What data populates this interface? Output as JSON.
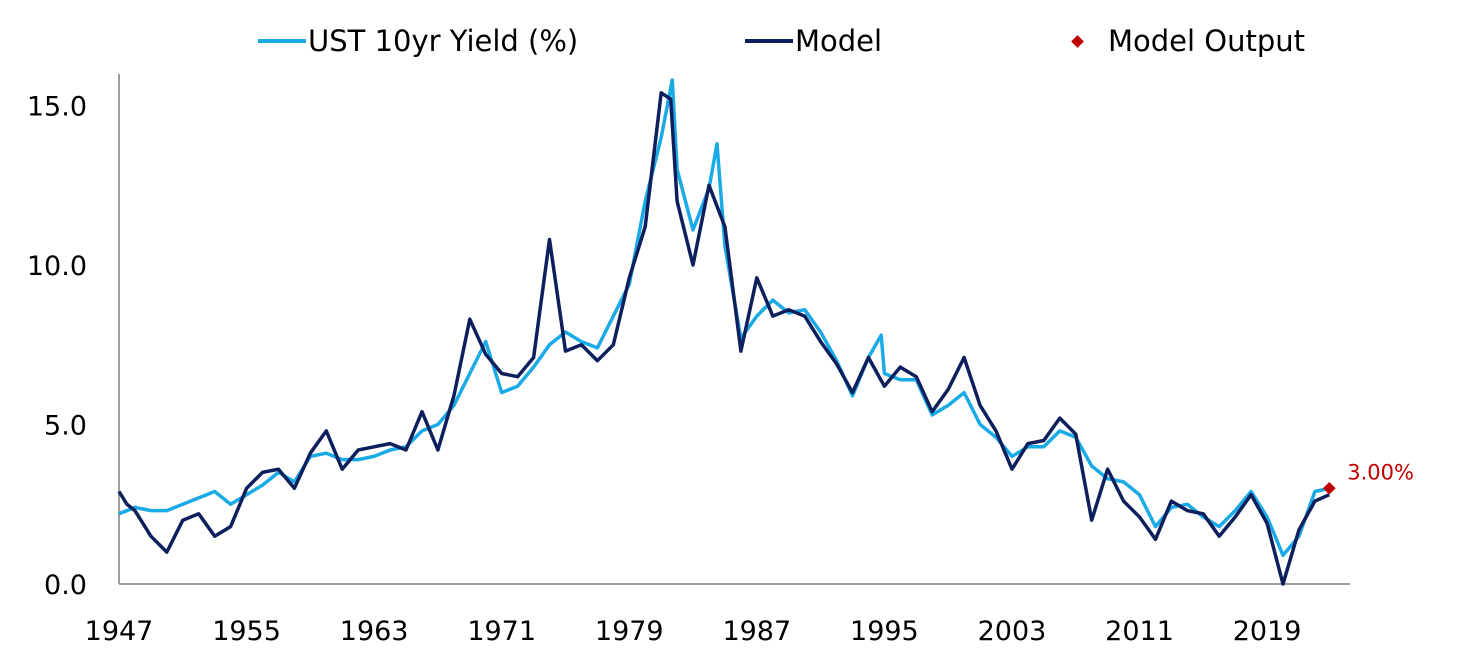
{
  "chart_data": {
    "type": "line",
    "title": "",
    "xlabel": "",
    "ylabel": "",
    "xlim": [
      1947,
      2024.2
    ],
    "ylim": [
      0,
      15.8
    ],
    "x_ticks": [
      "1947",
      "1955",
      "1963",
      "1971",
      "1979",
      "1987",
      "1995",
      "2003",
      "2011",
      "2019"
    ],
    "y_ticks": [
      "15.0",
      "10.0",
      "5.0",
      "0.0"
    ],
    "grid": false,
    "legend_position": "top",
    "legend": [
      {
        "label": "UST 10yr Yield (%)",
        "marker": "line"
      },
      {
        "label": "Model",
        "marker": "line"
      },
      {
        "label": "Model Output",
        "marker": "diamond"
      }
    ],
    "colors": {
      "ust": "#1AAAE6",
      "model": "#0D1F5C",
      "output": "#C00000"
    },
    "series": [
      {
        "name": "UST 10yr Yield (%)",
        "points": [
          [
            1947.0,
            2.2
          ],
          [
            1948.0,
            2.4
          ],
          [
            1949.0,
            2.3
          ],
          [
            1950.0,
            2.3
          ],
          [
            1951.0,
            2.5
          ],
          [
            1952.0,
            2.7
          ],
          [
            1953.0,
            2.9
          ],
          [
            1954.0,
            2.5
          ],
          [
            1955.0,
            2.8
          ],
          [
            1956.0,
            3.1
          ],
          [
            1957.0,
            3.5
          ],
          [
            1958.0,
            3.2
          ],
          [
            1959.0,
            4.0
          ],
          [
            1960.0,
            4.1
          ],
          [
            1961.0,
            3.9
          ],
          [
            1962.0,
            3.9
          ],
          [
            1963.0,
            4.0
          ],
          [
            1964.0,
            4.2
          ],
          [
            1965.0,
            4.3
          ],
          [
            1966.0,
            4.8
          ],
          [
            1967.0,
            5.0
          ],
          [
            1968.0,
            5.6
          ],
          [
            1969.0,
            6.6
          ],
          [
            1970.0,
            7.6
          ],
          [
            1971.0,
            6.0
          ],
          [
            1972.0,
            6.2
          ],
          [
            1973.0,
            6.8
          ],
          [
            1974.0,
            7.5
          ],
          [
            1975.0,
            7.9
          ],
          [
            1976.0,
            7.6
          ],
          [
            1977.0,
            7.4
          ],
          [
            1978.0,
            8.4
          ],
          [
            1979.0,
            9.4
          ],
          [
            1980.0,
            12.0
          ],
          [
            1981.0,
            14.0
          ],
          [
            1981.7,
            15.8
          ],
          [
            1982.0,
            13.0
          ],
          [
            1983.0,
            11.1
          ],
          [
            1984.0,
            12.4
          ],
          [
            1984.5,
            13.8
          ],
          [
            1985.0,
            10.6
          ],
          [
            1986.0,
            7.7
          ],
          [
            1987.0,
            8.4
          ],
          [
            1988.0,
            8.9
          ],
          [
            1989.0,
            8.5
          ],
          [
            1990.0,
            8.6
          ],
          [
            1991.0,
            7.9
          ],
          [
            1992.0,
            7.0
          ],
          [
            1993.0,
            5.9
          ],
          [
            1994.0,
            7.1
          ],
          [
            1994.8,
            7.8
          ],
          [
            1995.0,
            6.6
          ],
          [
            1996.0,
            6.4
          ],
          [
            1997.0,
            6.4
          ],
          [
            1998.0,
            5.3
          ],
          [
            1999.0,
            5.6
          ],
          [
            2000.0,
            6.0
          ],
          [
            2001.0,
            5.0
          ],
          [
            2002.0,
            4.6
          ],
          [
            2003.0,
            4.0
          ],
          [
            2004.0,
            4.3
          ],
          [
            2005.0,
            4.3
          ],
          [
            2006.0,
            4.8
          ],
          [
            2007.0,
            4.6
          ],
          [
            2008.0,
            3.7
          ],
          [
            2009.0,
            3.3
          ],
          [
            2010.0,
            3.2
          ],
          [
            2011.0,
            2.8
          ],
          [
            2012.0,
            1.8
          ],
          [
            2013.0,
            2.4
          ],
          [
            2014.0,
            2.5
          ],
          [
            2015.0,
            2.1
          ],
          [
            2016.0,
            1.8
          ],
          [
            2017.0,
            2.3
          ],
          [
            2018.0,
            2.9
          ],
          [
            2019.0,
            2.1
          ],
          [
            2020.0,
            0.9
          ],
          [
            2021.0,
            1.5
          ],
          [
            2022.0,
            2.9
          ],
          [
            2022.9,
            3.0
          ]
        ]
      },
      {
        "name": "Model",
        "points": [
          [
            1947.0,
            2.9
          ],
          [
            1947.5,
            2.5
          ],
          [
            1948.0,
            2.3
          ],
          [
            1949.0,
            1.5
          ],
          [
            1950.0,
            1.0
          ],
          [
            1951.0,
            2.0
          ],
          [
            1952.0,
            2.2
          ],
          [
            1953.0,
            1.5
          ],
          [
            1954.0,
            1.8
          ],
          [
            1955.0,
            3.0
          ],
          [
            1956.0,
            3.5
          ],
          [
            1957.0,
            3.6
          ],
          [
            1958.0,
            3.0
          ],
          [
            1959.0,
            4.1
          ],
          [
            1960.0,
            4.8
          ],
          [
            1961.0,
            3.6
          ],
          [
            1962.0,
            4.2
          ],
          [
            1963.0,
            4.3
          ],
          [
            1964.0,
            4.4
          ],
          [
            1965.0,
            4.2
          ],
          [
            1966.0,
            5.4
          ],
          [
            1967.0,
            4.2
          ],
          [
            1968.0,
            5.9
          ],
          [
            1969.0,
            8.3
          ],
          [
            1970.0,
            7.2
          ],
          [
            1971.0,
            6.6
          ],
          [
            1972.0,
            6.5
          ],
          [
            1973.0,
            7.1
          ],
          [
            1974.0,
            10.8
          ],
          [
            1975.0,
            7.3
          ],
          [
            1976.0,
            7.5
          ],
          [
            1977.0,
            7.0
          ],
          [
            1978.0,
            7.5
          ],
          [
            1979.0,
            9.6
          ],
          [
            1980.0,
            11.2
          ],
          [
            1981.0,
            15.4
          ],
          [
            1981.6,
            15.2
          ],
          [
            1982.0,
            12.0
          ],
          [
            1983.0,
            10.0
          ],
          [
            1984.0,
            12.5
          ],
          [
            1985.0,
            11.2
          ],
          [
            1986.0,
            7.3
          ],
          [
            1987.0,
            9.6
          ],
          [
            1988.0,
            8.4
          ],
          [
            1989.0,
            8.6
          ],
          [
            1990.0,
            8.4
          ],
          [
            1991.0,
            7.6
          ],
          [
            1992.0,
            6.9
          ],
          [
            1993.0,
            6.0
          ],
          [
            1994.0,
            7.1
          ],
          [
            1995.0,
            6.2
          ],
          [
            1996.0,
            6.8
          ],
          [
            1997.0,
            6.5
          ],
          [
            1998.0,
            5.4
          ],
          [
            1999.0,
            6.1
          ],
          [
            2000.0,
            7.1
          ],
          [
            2001.0,
            5.6
          ],
          [
            2002.0,
            4.8
          ],
          [
            2003.0,
            3.6
          ],
          [
            2004.0,
            4.4
          ],
          [
            2005.0,
            4.5
          ],
          [
            2006.0,
            5.2
          ],
          [
            2007.0,
            4.7
          ],
          [
            2008.0,
            2.0
          ],
          [
            2009.0,
            3.6
          ],
          [
            2010.0,
            2.6
          ],
          [
            2011.0,
            2.1
          ],
          [
            2012.0,
            1.4
          ],
          [
            2013.0,
            2.6
          ],
          [
            2014.0,
            2.3
          ],
          [
            2015.0,
            2.2
          ],
          [
            2016.0,
            1.5
          ],
          [
            2017.0,
            2.1
          ],
          [
            2018.0,
            2.8
          ],
          [
            2019.0,
            1.9
          ],
          [
            2020.0,
            0.0
          ],
          [
            2021.0,
            1.7
          ],
          [
            2022.0,
            2.6
          ],
          [
            2022.9,
            2.8
          ]
        ]
      }
    ],
    "model_output": {
      "x": 2022.9,
      "y": 3.0,
      "label": "3.00%"
    }
  }
}
